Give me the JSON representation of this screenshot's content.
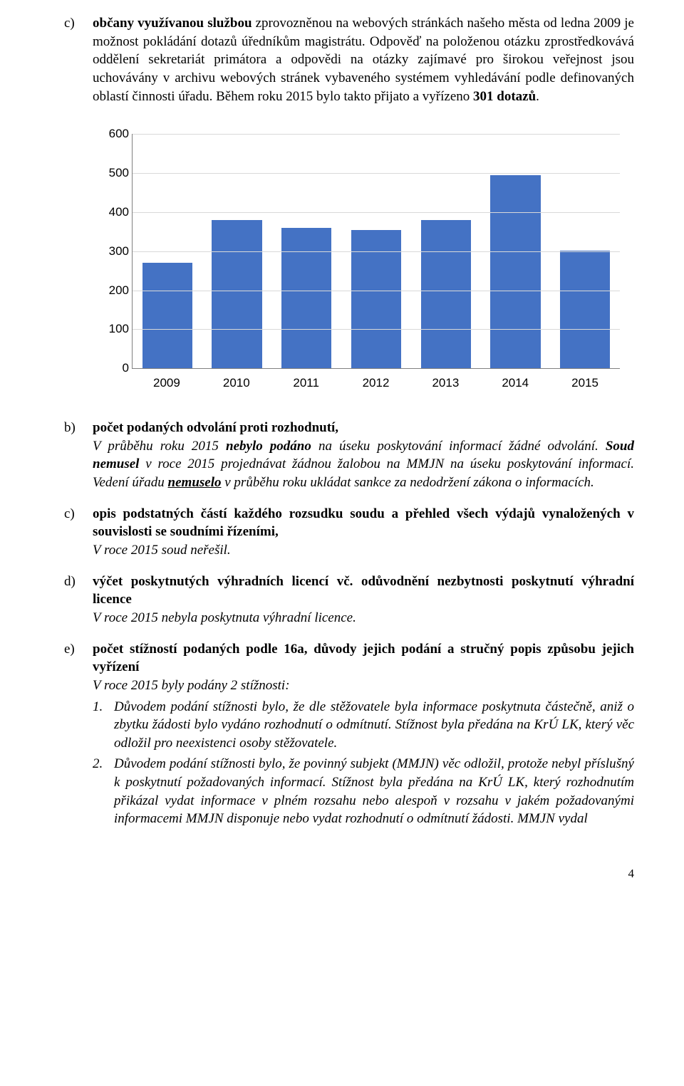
{
  "sections": {
    "c_top": {
      "label": "c)",
      "para1_pre": "",
      "para1_bold": "občany využívanou službou",
      "para1_post": " zprovozněnou na webových stránkách našeho města od ledna 2009 je možnost pokládání dotazů úředníkům magistrátu. Odpověď na položenou otázku zprostředkovává oddělení sekretariát primátora a odpovědi na otázky zajímavé pro širokou veřejnost jsou uchovávány v archivu webových stránek vybaveného systémem vyhledávání podle definovaných oblastí činnosti úřadu. Během roku 2015 bylo takto přijato a vyřízeno ",
      "para1_count": "301 dotazů",
      "para1_end": "."
    },
    "b": {
      "label": "b)",
      "heading": "počet podaných odvolání proti rozhodnutí,",
      "text1": "V průběhu roku 2015 ",
      "nebylo": "nebylo podáno",
      "text2": " na úseku poskytování informací žádné odvolání. ",
      "soud": "Soud nemusel",
      "text3": " v roce 2015 projednávat žádnou žalobou na MMJN na úseku poskytování informací. Vedení úřadu ",
      "nemuselo": "nemuselo",
      "text4": " v průběhu roku ukládat sankce za nedodržení zákona o informacích."
    },
    "c2": {
      "label": "c)",
      "heading": "opis podstatných částí každého rozsudku soudu a přehled všech výdajů vynaložených v souvislosti se soudními řízeními,",
      "text": "V roce 2015 soud neřešil."
    },
    "d": {
      "label": "d)",
      "heading": "výčet poskytnutých výhradních licencí vč. odůvodnění nezbytnosti poskytnutí výhradní licence",
      "text": "V roce 2015 nebyla poskytnuta výhradní licence."
    },
    "e": {
      "label": "e)",
      "heading": "počet stížností podaných podle 16a, důvody jejich podání a stručný popis způsobu jejich vyřízení",
      "intro": "V roce 2015 byly podány 2 stížnosti:",
      "item1_num": "1.",
      "item1": "Důvodem podání stížnosti bylo, že dle stěžovatele byla informace poskytnuta částečně, aniž o zbytku žádosti bylo vydáno rozhodnutí o odmítnutí. Stížnost byla předána na KrÚ LK, který věc odložil pro neexistenci osoby stěžovatele.",
      "item2_num": "2.",
      "item2": "Důvodem podání stížnosti bylo, že povinný subjekt (MMJN) věc odložil, protože nebyl příslušný k poskytnutí požadovaných informací. Stížnost byla předána na KrÚ LK, který rozhodnutím přikázal vydat informace v plném rozsahu nebo alespoň v rozsahu v jakém požadovanými informacemi MMJN disponuje nebo vydat rozhodnutí o odmítnutí žádosti. MMJN vydal"
    }
  },
  "chart": {
    "type": "bar",
    "categories": [
      "2009",
      "2010",
      "2011",
      "2012",
      "2013",
      "2014",
      "2015"
    ],
    "values": [
      270,
      380,
      360,
      355,
      380,
      495,
      301
    ],
    "ylim": [
      0,
      600
    ],
    "yticks": [
      0,
      100,
      200,
      300,
      400,
      500,
      600
    ],
    "bar_color": "#4472c4",
    "grid_color": "#d9d9d9",
    "axis_color": "#808080",
    "background_color": "#ffffff",
    "tick_fontsize": 17,
    "bar_width": 0.72
  },
  "page_number": "4"
}
